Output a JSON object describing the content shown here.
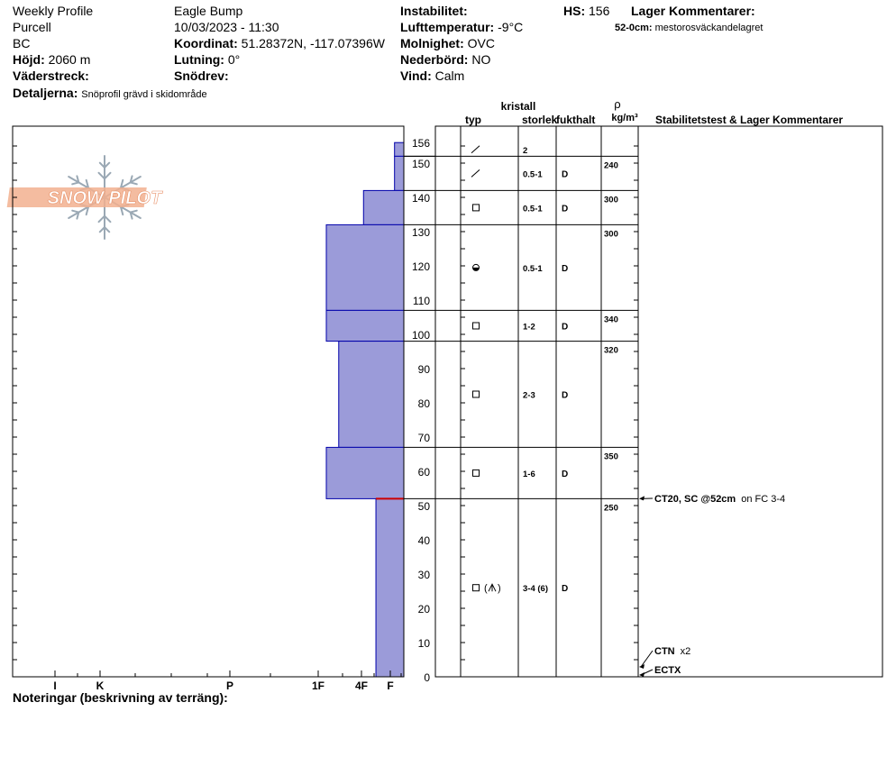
{
  "header": {
    "profile_name": "Weekly Profile",
    "range": "Purcell",
    "province": "BC",
    "elevation_label": "Höjd:",
    "elevation_value": "2060 m",
    "aspect_label": "Väderstreck:",
    "aspect_value": "",
    "details_label": "Detaljerna:",
    "details_value": "Snöprofil grävd i skidområde",
    "location": "Eagle Bump",
    "datetime": "10/03/2023 - 11:30",
    "coord_label": "Koordinat:",
    "coord_value": "51.28372N, -117.07396W",
    "slope_label": "Lutning:",
    "slope_value": "0°",
    "drift_label": "Snödrev:",
    "drift_value": "",
    "instability_label": "Instabilitet:",
    "instability_value": "",
    "airtemp_label": "Lufttemperatur:",
    "airtemp_value": "-9°C",
    "sky_label": "Molnighet:",
    "sky_value": "OVC",
    "precip_label": "Nederbörd:",
    "precip_value": "NO",
    "wind_label": "Vind:",
    "wind_value": "Calm",
    "hs_label": "HS:",
    "hs_value": "156",
    "layer_comments_label": "Lager Kommentarer:",
    "layer_comment_depth": "52-0cm:",
    "layer_comment_text": "mestorosväckandelagret"
  },
  "watermark": "SNOW PILOT",
  "footer": {
    "notes_label": "Noteringar (beskrivning av terräng):"
  },
  "colors": {
    "hardness_fill": "#9b9bd9",
    "hardness_stroke": "#0000aa",
    "weak_layer": "#cc0000",
    "logo": "#f2b08f",
    "snowflake": "#9aa8b4"
  },
  "chart_data": {
    "type": "snow_profile",
    "hs": 156,
    "y_axis": {
      "range": [
        0,
        156
      ],
      "ticks": [
        0,
        10,
        20,
        30,
        40,
        50,
        60,
        70,
        80,
        90,
        100,
        110,
        120,
        130,
        140,
        150,
        156
      ]
    },
    "hardness_axis": {
      "labels": [
        "I",
        "K",
        "P",
        "1F",
        "4F",
        "F"
      ],
      "level_index": {
        "F": 1,
        "4F": 2,
        "1F": 3,
        "P": 4,
        "K": 5,
        "I": 6
      }
    },
    "columns": {
      "crystal_group": "kristall",
      "type": "typ",
      "size": "storlek",
      "moisture": "fukthalt",
      "density_symbol": "ρ",
      "density_unit": "kg/m³",
      "stability": "Stabilitetstest & Lager Kommentarer"
    },
    "layers": [
      {
        "top": 156,
        "bottom": 152,
        "hardness_level": 0.3,
        "type_icon": "pp",
        "size": "2",
        "moisture": "",
        "density": ""
      },
      {
        "top": 152,
        "bottom": 142,
        "hardness_level": 0.3,
        "type_icon": "pp",
        "size": "0.5-1",
        "moisture": "D",
        "density": "240"
      },
      {
        "top": 142,
        "bottom": 132,
        "hardness_level": 1.3,
        "type_icon": "fc",
        "size": "0.5-1",
        "moisture": "D",
        "density": "300"
      },
      {
        "top": 132,
        "bottom": 107,
        "hardness_level": 2.5,
        "type_icon": "mf",
        "size": "0.5-1",
        "moisture": "D",
        "density": "300"
      },
      {
        "top": 107,
        "bottom": 98,
        "hardness_level": 2.5,
        "type_icon": "fc",
        "size": "1-2",
        "moisture": "D",
        "density": "340"
      },
      {
        "top": 98,
        "bottom": 67,
        "hardness_level": 2.1,
        "type_icon": "fc",
        "size": "2-3",
        "moisture": "D",
        "density": "320"
      },
      {
        "top": 67,
        "bottom": 52,
        "hardness_level": 2.5,
        "type_icon": "fc",
        "size": "1-6",
        "moisture": "D",
        "density": "350"
      },
      {
        "top": 52,
        "bottom": 0,
        "hardness_level": 0.9,
        "type_icon": "fc-dh",
        "size": "3-4 (6)",
        "moisture": "D",
        "density": "250"
      }
    ],
    "weak_layer_height": 52,
    "tests": [
      {
        "height": 52,
        "code": "CT20, SC @52cm",
        "note": "on FC 3-4"
      },
      {
        "height": 7,
        "code": "CTN",
        "note": "x2"
      },
      {
        "height": 2,
        "code": "ECTX",
        "note": ""
      }
    ]
  }
}
